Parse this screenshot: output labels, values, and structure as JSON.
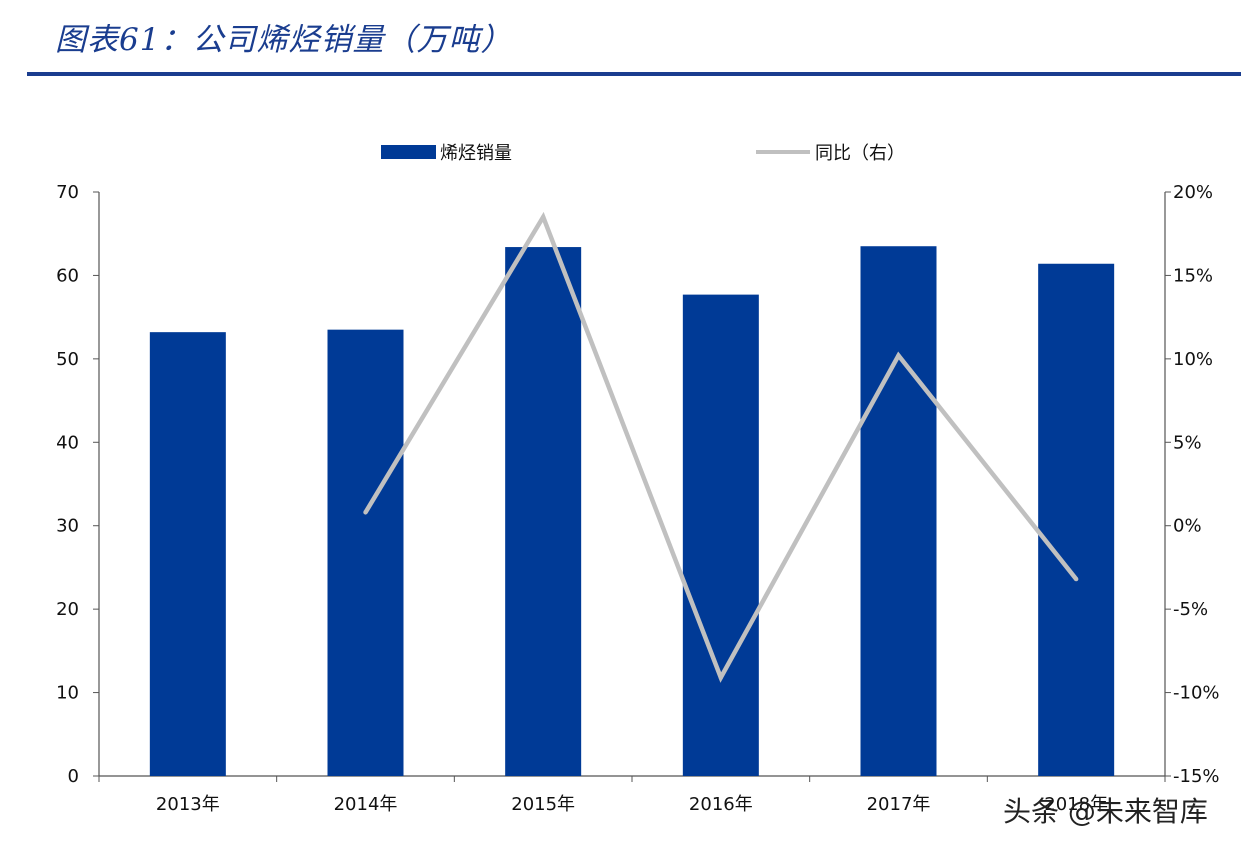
{
  "header": {
    "title": "图表61：公司烯烃销量（万吨）"
  },
  "chart_data": {
    "type": "bar",
    "title": "",
    "xlabel": "",
    "ylabel": "",
    "categories": [
      "2013年",
      "2014年",
      "2015年",
      "2016年",
      "2017年",
      "2018年"
    ],
    "series": [
      {
        "name": "烯烃销量",
        "type": "bar",
        "axis": "left",
        "color": "#003a96",
        "values": [
          53.2,
          53.5,
          63.4,
          57.7,
          63.5,
          61.4
        ]
      },
      {
        "name": "同比（右）",
        "type": "line",
        "axis": "right",
        "color": "#c0c0c0",
        "values": [
          null,
          0.8,
          18.5,
          -9.1,
          10.2,
          -3.2
        ]
      }
    ],
    "ylim": [
      0,
      70
    ],
    "yticks": [
      "0",
      "10",
      "20",
      "30",
      "40",
      "50",
      "60",
      "70"
    ],
    "y2lim": [
      -15,
      20
    ],
    "y2ticks": [
      "-15%",
      "-10%",
      "-5%",
      "0%",
      "5%",
      "10%",
      "15%",
      "20%"
    ],
    "legend_position": "top",
    "grid": false
  },
  "watermark": "头条 @未来智库"
}
